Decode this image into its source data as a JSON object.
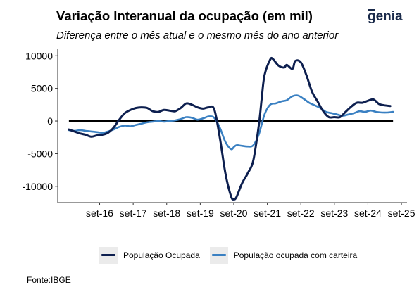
{
  "brand": {
    "logo_text": "genial",
    "logo_color": "#1a2a4a"
  },
  "chart_data": {
    "type": "line",
    "title": "Variação Interanual da ocupação (em mil)",
    "subtitle": "Diferença entre o mês atual e o mesmo mês do ano anterior",
    "source": "Fonte:IBGE",
    "xlabel": "",
    "ylabel": "",
    "ylim": [
      -12500,
      11000
    ],
    "yticks": [
      -10000,
      -5000,
      0,
      5000,
      10000
    ],
    "xticks": [
      {
        "date": "2016-09",
        "label": "set-16"
      },
      {
        "date": "2017-09",
        "label": "set-17"
      },
      {
        "date": "2018-09",
        "label": "set-18"
      },
      {
        "date": "2019-09",
        "label": "set-19"
      },
      {
        "date": "2020-09",
        "label": "set-20"
      },
      {
        "date": "2021-09",
        "label": "set-21"
      },
      {
        "date": "2022-09",
        "label": "set-22"
      },
      {
        "date": "2023-09",
        "label": "set-23"
      },
      {
        "date": "2024-09",
        "label": "set-24"
      },
      {
        "date": "2025-09",
        "label": "set-25"
      }
    ],
    "xlim": [
      "2015-06",
      "2025-11"
    ],
    "zero_line": true,
    "grid": false,
    "legend_position": "bottom",
    "series": [
      {
        "name": "População Ocupada",
        "color": "#0d1f4f",
        "points": [
          [
            "2015-10",
            -1300
          ],
          [
            "2015-12",
            -1600
          ],
          [
            "2016-02",
            -1900
          ],
          [
            "2016-04",
            -2100
          ],
          [
            "2016-06",
            -2400
          ],
          [
            "2016-08",
            -2200
          ],
          [
            "2016-10",
            -2100
          ],
          [
            "2016-12",
            -1800
          ],
          [
            "2017-02",
            -1000
          ],
          [
            "2017-04",
            200
          ],
          [
            "2017-06",
            1200
          ],
          [
            "2017-08",
            1700
          ],
          [
            "2017-10",
            2000
          ],
          [
            "2017-12",
            2100
          ],
          [
            "2018-02",
            2000
          ],
          [
            "2018-04",
            1500
          ],
          [
            "2018-06",
            1400
          ],
          [
            "2018-08",
            1700
          ],
          [
            "2018-10",
            1600
          ],
          [
            "2018-12",
            1500
          ],
          [
            "2019-02",
            2000
          ],
          [
            "2019-04",
            2700
          ],
          [
            "2019-06",
            2500
          ],
          [
            "2019-08",
            2100
          ],
          [
            "2019-10",
            1900
          ],
          [
            "2019-12",
            2100
          ],
          [
            "2020-02",
            1800
          ],
          [
            "2020-04",
            -2500
          ],
          [
            "2020-06",
            -8000
          ],
          [
            "2020-08",
            -11500
          ],
          [
            "2020-09",
            -12000
          ],
          [
            "2020-10",
            -11600
          ],
          [
            "2020-12",
            -9500
          ],
          [
            "2021-02",
            -8000
          ],
          [
            "2021-04",
            -6000
          ],
          [
            "2021-06",
            -500
          ],
          [
            "2021-07",
            3500
          ],
          [
            "2021-08",
            7000
          ],
          [
            "2021-10",
            9400
          ],
          [
            "2021-11",
            9500
          ],
          [
            "2022-01",
            8500
          ],
          [
            "2022-03",
            8200
          ],
          [
            "2022-04",
            8600
          ],
          [
            "2022-06",
            8000
          ],
          [
            "2022-07",
            9200
          ],
          [
            "2022-09",
            9000
          ],
          [
            "2022-11",
            7000
          ],
          [
            "2023-01",
            4500
          ],
          [
            "2023-03",
            3000
          ],
          [
            "2023-05",
            1500
          ],
          [
            "2023-07",
            600
          ],
          [
            "2023-09",
            600
          ],
          [
            "2023-11",
            600
          ],
          [
            "2024-01",
            1400
          ],
          [
            "2024-03",
            2200
          ],
          [
            "2024-05",
            2800
          ],
          [
            "2024-07",
            2800
          ],
          [
            "2024-09",
            3100
          ],
          [
            "2024-11",
            3300
          ],
          [
            "2025-01",
            2600
          ],
          [
            "2025-03",
            2400
          ],
          [
            "2025-05",
            2300
          ]
        ]
      },
      {
        "name": "População ocupada com carteira",
        "color": "#3a80c2",
        "points": [
          [
            "2015-10",
            -1400
          ],
          [
            "2015-12",
            -1500
          ],
          [
            "2016-02",
            -1400
          ],
          [
            "2016-04",
            -1500
          ],
          [
            "2016-06",
            -1600
          ],
          [
            "2016-08",
            -1700
          ],
          [
            "2016-10",
            -1800
          ],
          [
            "2016-12",
            -1600
          ],
          [
            "2017-02",
            -1300
          ],
          [
            "2017-04",
            -900
          ],
          [
            "2017-06",
            -700
          ],
          [
            "2017-08",
            -800
          ],
          [
            "2017-10",
            -600
          ],
          [
            "2017-12",
            -400
          ],
          [
            "2018-02",
            -200
          ],
          [
            "2018-04",
            -100
          ],
          [
            "2018-06",
            0
          ],
          [
            "2018-08",
            -100
          ],
          [
            "2018-10",
            0
          ],
          [
            "2018-12",
            100
          ],
          [
            "2019-02",
            300
          ],
          [
            "2019-04",
            600
          ],
          [
            "2019-06",
            500
          ],
          [
            "2019-08",
            200
          ],
          [
            "2019-10",
            400
          ],
          [
            "2019-12",
            700
          ],
          [
            "2020-02",
            500
          ],
          [
            "2020-04",
            -1000
          ],
          [
            "2020-06",
            -3200
          ],
          [
            "2020-08",
            -4300
          ],
          [
            "2020-09",
            -4000
          ],
          [
            "2020-10",
            -3700
          ],
          [
            "2020-12",
            -3800
          ],
          [
            "2021-02",
            -3900
          ],
          [
            "2021-04",
            -3700
          ],
          [
            "2021-06",
            -2000
          ],
          [
            "2021-08",
            1000
          ],
          [
            "2021-10",
            2500
          ],
          [
            "2021-12",
            2700
          ],
          [
            "2022-02",
            3000
          ],
          [
            "2022-04",
            3200
          ],
          [
            "2022-06",
            3800
          ],
          [
            "2022-08",
            3900
          ],
          [
            "2022-10",
            3400
          ],
          [
            "2022-12",
            2800
          ],
          [
            "2023-02",
            2400
          ],
          [
            "2023-04",
            2000
          ],
          [
            "2023-06",
            1400
          ],
          [
            "2023-08",
            1200
          ],
          [
            "2023-10",
            1000
          ],
          [
            "2023-12",
            800
          ],
          [
            "2024-02",
            1000
          ],
          [
            "2024-04",
            1200
          ],
          [
            "2024-06",
            1500
          ],
          [
            "2024-08",
            1400
          ],
          [
            "2024-10",
            1600
          ],
          [
            "2024-12",
            1400
          ],
          [
            "2025-02",
            1300
          ],
          [
            "2025-04",
            1300
          ],
          [
            "2025-06",
            1400
          ]
        ]
      }
    ]
  }
}
